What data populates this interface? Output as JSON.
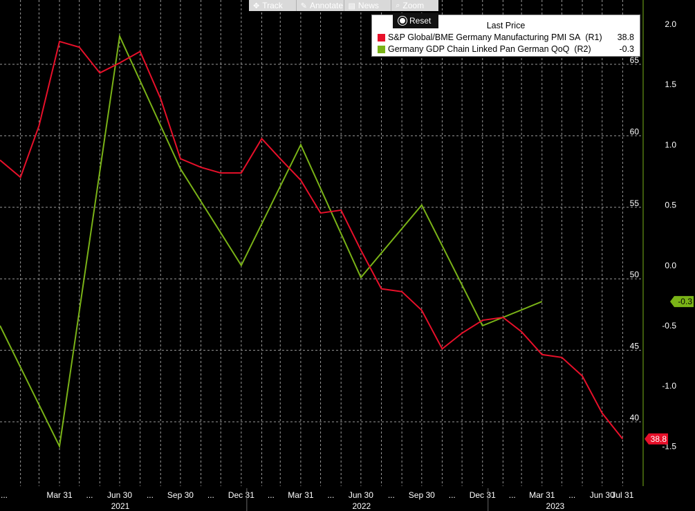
{
  "toolbar": {
    "items": [
      {
        "label": "Track",
        "icon": "crosshair-icon"
      },
      {
        "label": "Annotate",
        "icon": "pencil-icon"
      },
      {
        "label": "News",
        "icon": "news-icon"
      },
      {
        "label": "Zoom",
        "icon": "magnifier-icon"
      }
    ],
    "reset_label": "Reset"
  },
  "chart_data": {
    "type": "line",
    "legend": {
      "title": "Last Price",
      "placement": "top-right"
    },
    "series": [
      {
        "name": "S&P Global/BME Germany Manufacturing PMI SA",
        "axis_tag": "(R1)",
        "last_value": "38.8",
        "color": "#e8102a",
        "axis": "left",
        "points": [
          {
            "x": "2020-12-31",
            "y": 58.3
          },
          {
            "x": "2021-01-31",
            "y": 57.1
          },
          {
            "x": "2021-02-28",
            "y": 60.7
          },
          {
            "x": "2021-03-31",
            "y": 66.6
          },
          {
            "x": "2021-04-30",
            "y": 66.2
          },
          {
            "x": "2021-05-31",
            "y": 64.4
          },
          {
            "x": "2021-06-30",
            "y": 65.1
          },
          {
            "x": "2021-07-31",
            "y": 65.9
          },
          {
            "x": "2021-08-31",
            "y": 62.6
          },
          {
            "x": "2021-09-30",
            "y": 58.4
          },
          {
            "x": "2021-10-31",
            "y": 57.8
          },
          {
            "x": "2021-11-30",
            "y": 57.4
          },
          {
            "x": "2021-12-31",
            "y": 57.4
          },
          {
            "x": "2022-01-31",
            "y": 59.8
          },
          {
            "x": "2022-02-28",
            "y": 58.4
          },
          {
            "x": "2022-03-31",
            "y": 56.9
          },
          {
            "x": "2022-04-30",
            "y": 54.6
          },
          {
            "x": "2022-05-31",
            "y": 54.8
          },
          {
            "x": "2022-06-30",
            "y": 52.0
          },
          {
            "x": "2022-07-31",
            "y": 49.3
          },
          {
            "x": "2022-08-31",
            "y": 49.1
          },
          {
            "x": "2022-09-30",
            "y": 47.8
          },
          {
            "x": "2022-10-31",
            "y": 45.1
          },
          {
            "x": "2022-11-30",
            "y": 46.2
          },
          {
            "x": "2022-12-31",
            "y": 47.1
          },
          {
            "x": "2023-01-31",
            "y": 47.3
          },
          {
            "x": "2023-02-28",
            "y": 46.3
          },
          {
            "x": "2023-03-31",
            "y": 44.7
          },
          {
            "x": "2023-04-30",
            "y": 44.5
          },
          {
            "x": "2023-05-31",
            "y": 43.2
          },
          {
            "x": "2023-06-30",
            "y": 40.6
          },
          {
            "x": "2023-07-31",
            "y": 38.8
          }
        ]
      },
      {
        "name": "Germany GDP Chain Linked Pan German QoQ",
        "axis_tag": "(R2)",
        "last_value": "-0.3",
        "color": "#7ab317",
        "axis": "right",
        "points": [
          {
            "x": "2020-12-31",
            "y": -0.5
          },
          {
            "x": "2021-03-31",
            "y": -1.5
          },
          {
            "x": "2021-06-30",
            "y": 1.9
          },
          {
            "x": "2021-09-30",
            "y": 0.8
          },
          {
            "x": "2021-12-31",
            "y": 0.0
          },
          {
            "x": "2022-03-31",
            "y": 1.0
          },
          {
            "x": "2022-06-30",
            "y": -0.1
          },
          {
            "x": "2022-09-30",
            "y": 0.5
          },
          {
            "x": "2022-12-31",
            "y": -0.5
          },
          {
            "x": "2023-03-31",
            "y": -0.3
          }
        ]
      }
    ],
    "left_axis": {
      "range": [
        35.5,
        69.5
      ],
      "ticks": [
        40,
        45,
        50,
        55,
        60,
        65
      ]
    },
    "right_axis": {
      "range": [
        -1.83,
        2.2
      ],
      "ticks": [
        -1.5,
        -1.0,
        -0.5,
        0.0,
        0.5,
        1.0,
        1.5,
        2.0
      ],
      "tick_labels": [
        "-1.5",
        "-1.0",
        "-0.5",
        "0.0",
        "0.5",
        "1.0",
        "1.5",
        "2.0"
      ]
    },
    "x_axis": {
      "range": [
        "2020-12-31",
        "2023-08-31"
      ],
      "month_ticks": [
        {
          "x": "2021-03-31",
          "label": "Mar 31"
        },
        {
          "x": "2021-06-30",
          "label": "Jun 30"
        },
        {
          "x": "2021-09-30",
          "label": "Sep 30"
        },
        {
          "x": "2021-12-31",
          "label": "Dec 31"
        },
        {
          "x": "2022-03-31",
          "label": "Mar 31"
        },
        {
          "x": "2022-06-30",
          "label": "Jun 30"
        },
        {
          "x": "2022-09-30",
          "label": "Sep 30"
        },
        {
          "x": "2022-12-31",
          "label": "Dec 31"
        },
        {
          "x": "2023-03-31",
          "label": "Mar 31"
        },
        {
          "x": "2023-06-30",
          "label": "Jun 30"
        },
        {
          "x": "2023-07-31",
          "label": "Jul 31"
        }
      ],
      "ellipsis": "...",
      "years": [
        {
          "x": "2021-07-01",
          "label": "2021"
        },
        {
          "x": "2022-07-01",
          "label": "2022"
        },
        {
          "x": "2023-04-20",
          "label": "2023"
        }
      ]
    },
    "grid": true
  }
}
